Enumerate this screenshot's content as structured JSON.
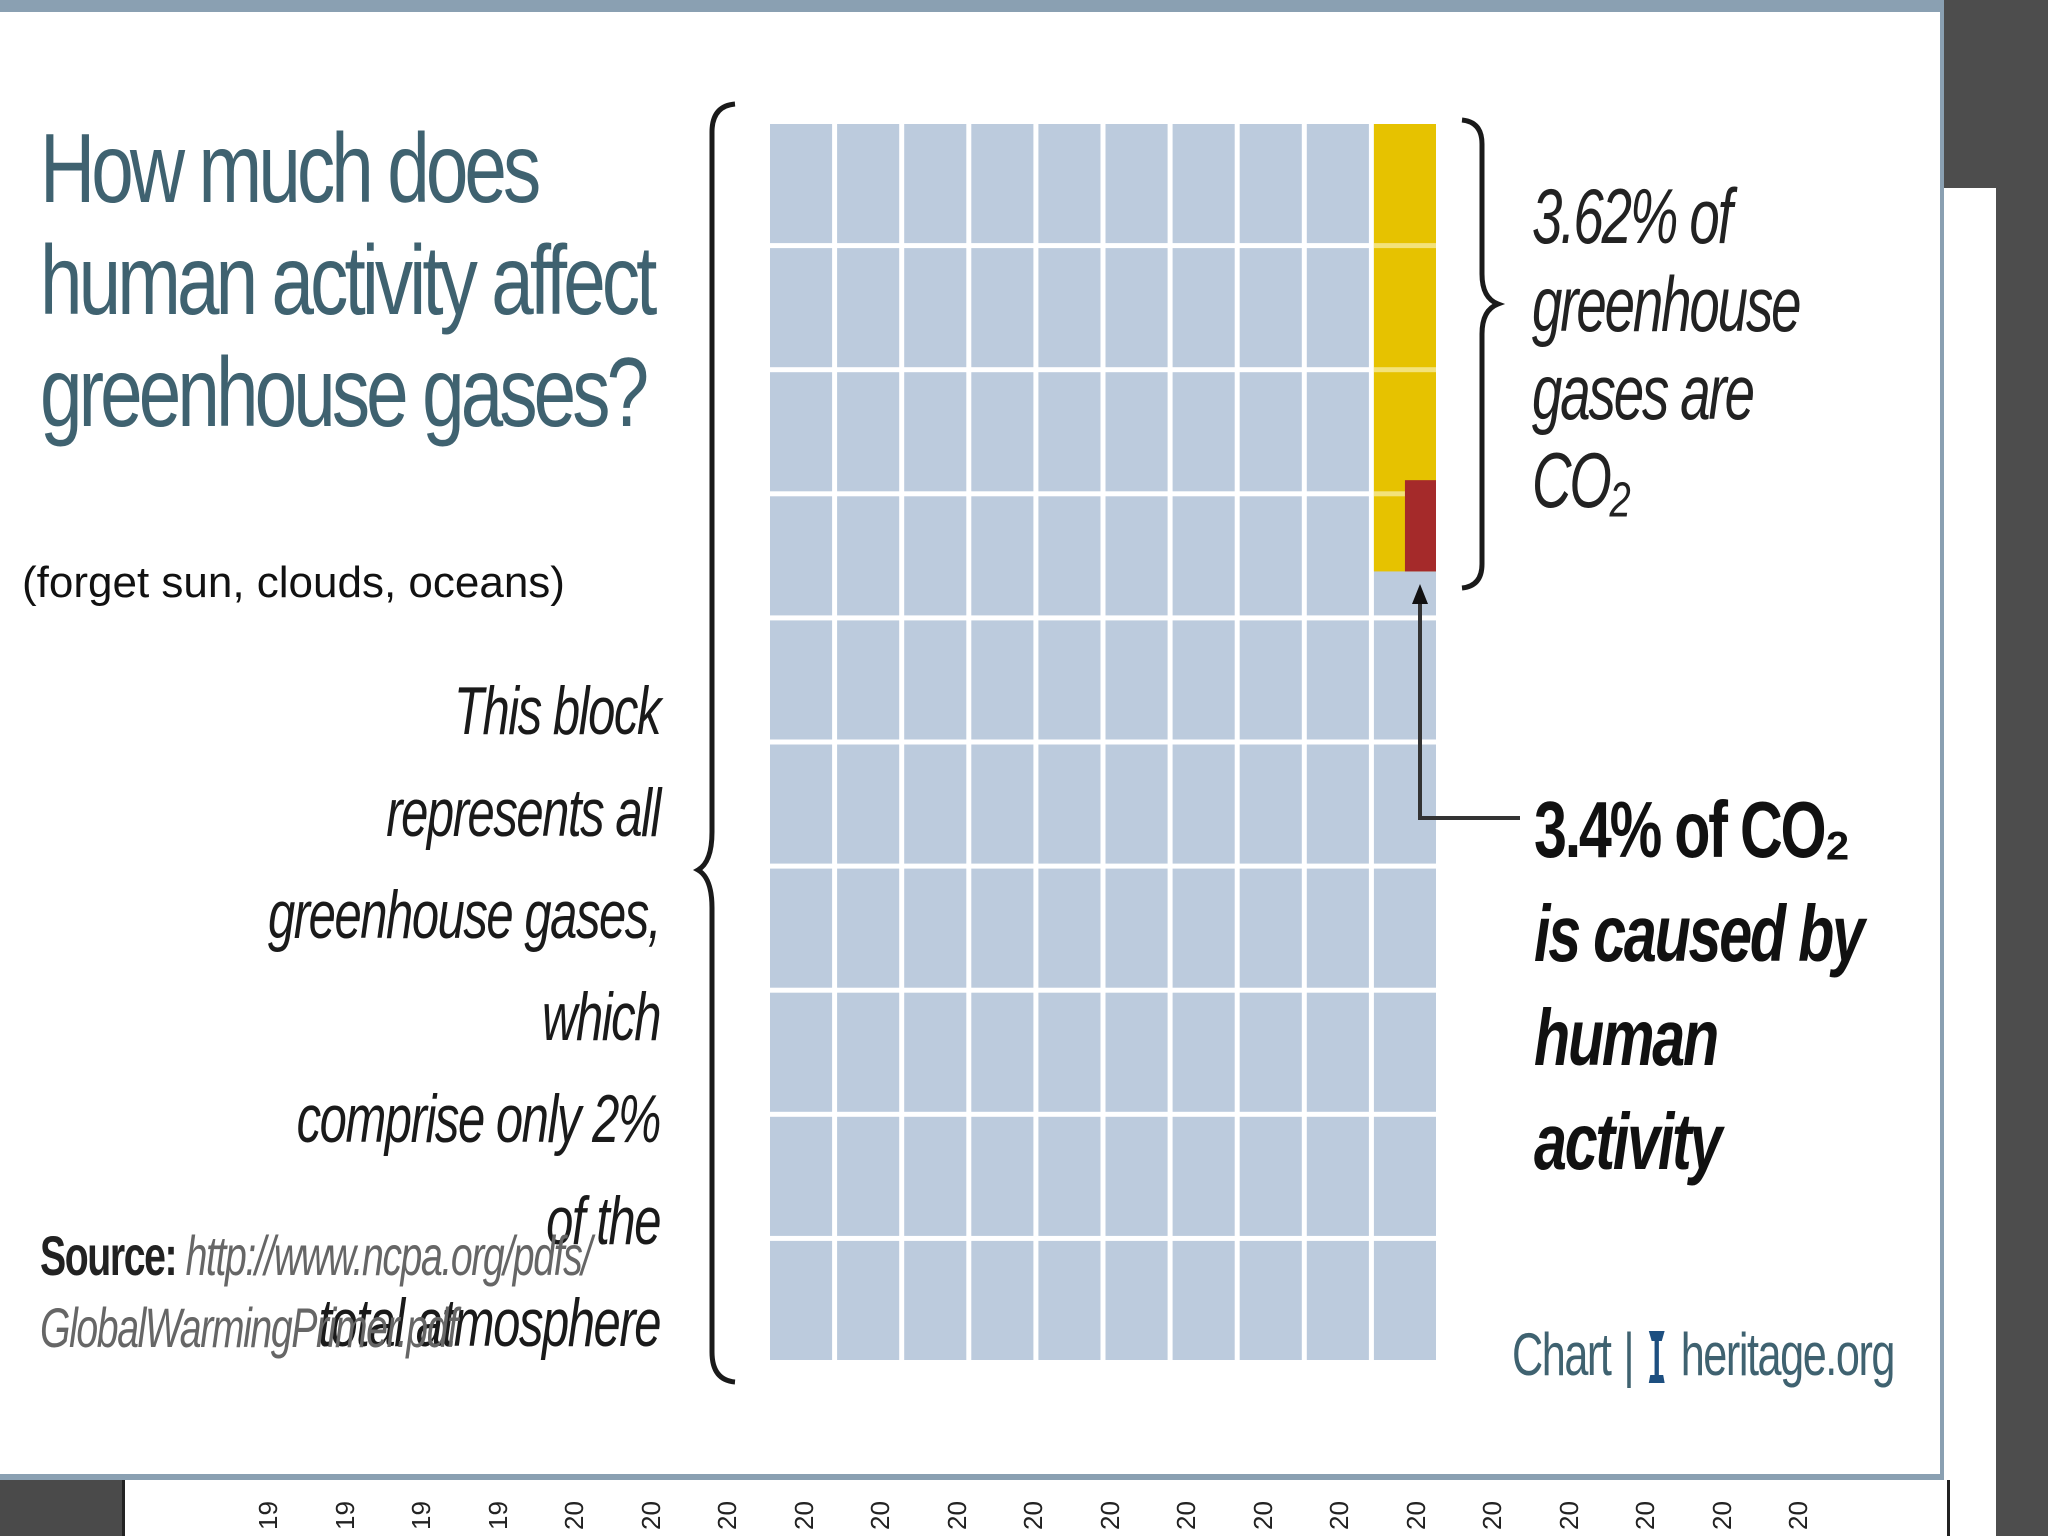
{
  "slide": {
    "title": [
      "How much does",
      "human activity affect",
      "greenhouse gases?"
    ],
    "subtitle": "(forget sun, clouds, oceans)",
    "block_note": [
      "This block represents all",
      "greenhouse gases, which",
      "comprise only 2% of the",
      "total atmosphere"
    ],
    "source_label": "Source:",
    "source_text": [
      "http://www.ncpa.org/pdfs/",
      "GlobalWarmingPrimer.pdf"
    ],
    "credit_chart": "Chart",
    "credit_sep": "|",
    "credit_site": "heritage.org"
  },
  "bottom_axis": {
    "ticks": [
      "19",
      "19",
      "19",
      "19",
      "20",
      "20",
      "20",
      "20",
      "20",
      "20",
      "20",
      "20",
      "20",
      "20",
      "20",
      "20",
      "20",
      "20",
      "20",
      "20",
      "20"
    ]
  },
  "chart_data": {
    "type": "waffle",
    "grid": {
      "cols": 10,
      "rows": 10
    },
    "series": [
      {
        "name": "All greenhouse gases (2% of total atmosphere)",
        "color": "#bccbdd",
        "percent": 100
      },
      {
        "name": "CO2 share of greenhouse gases",
        "color": "#e6c200",
        "percent": 3.62
      },
      {
        "name": "Human-caused share of CO2",
        "color": "#a52a2a",
        "percent": 3.4
      }
    ],
    "annotations": {
      "co2": [
        "3.62% of",
        "greenhouse",
        "gases are",
        "CO₂"
      ],
      "human": [
        "3.4% of CO₂",
        "is caused by",
        "human",
        "activity"
      ]
    }
  },
  "colors": {
    "title": "#3f6270",
    "grid_cell": "#bccbdd",
    "grid_line": "#ffffff",
    "co2": "#e6c200",
    "human": "#a52a2a",
    "frame": "#8aa0b2"
  }
}
